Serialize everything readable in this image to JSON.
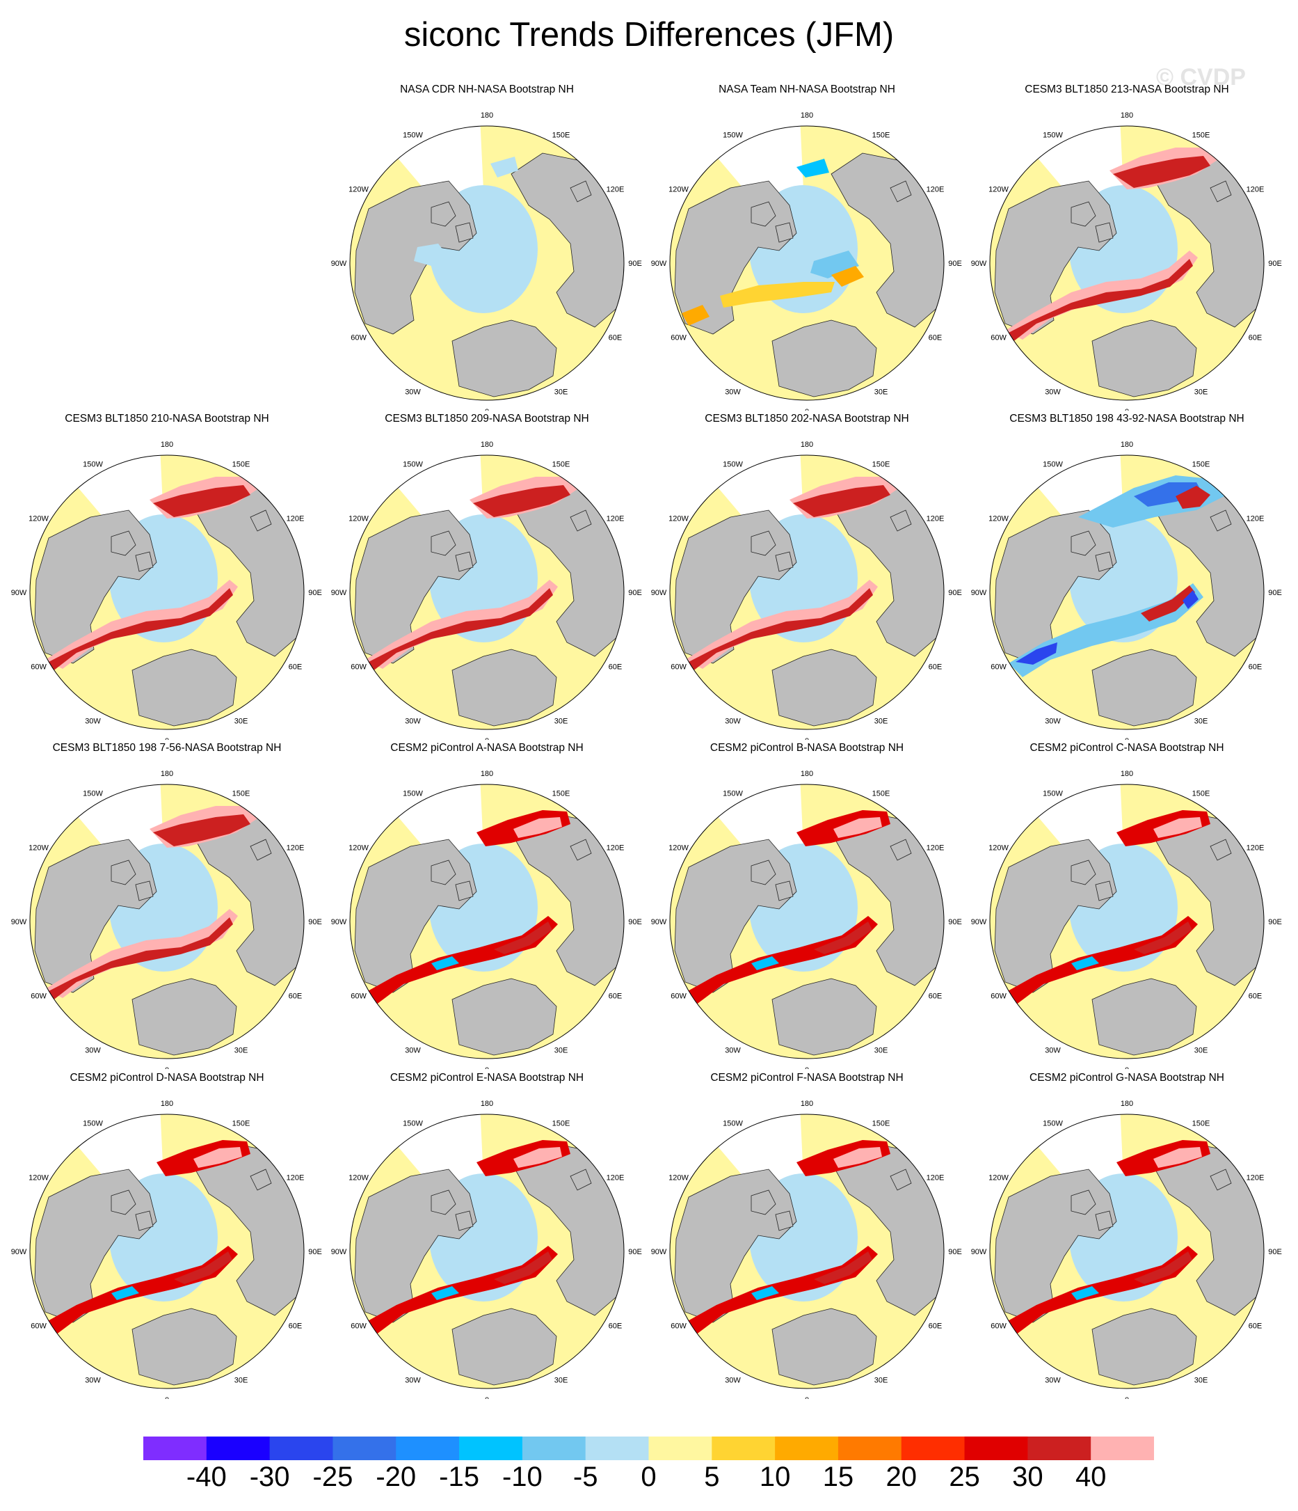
{
  "title": "siconc Trends Differences (JFM)",
  "watermark": "© CVDP",
  "lon_labels": [
    "180",
    "150E",
    "120E",
    "90E",
    "60E",
    "30E",
    "0",
    "30W",
    "60W",
    "90W",
    "120W",
    "150W"
  ],
  "colors": {
    "land": "#bdbdbd",
    "ocean_outside_ice": "#ffffff",
    "zero_band": "#fff7a0",
    "coast": "#222222"
  },
  "colorbar": {
    "colors": [
      "#7f2dff",
      "#1a00ff",
      "#2a45ee",
      "#3471ea",
      "#1e90ff",
      "#00c3ff",
      "#72c8f0",
      "#b4e0f4",
      "#fff7a0",
      "#ffd432",
      "#ffaa00",
      "#ff7a00",
      "#ff2e00",
      "#e00000",
      "#cc2020",
      "#ffb2b2"
    ],
    "labels": [
      "-40",
      "-30",
      "-25",
      "-20",
      "-15",
      "-10",
      "-5",
      "0",
      "5",
      "10",
      "15",
      "20",
      "25",
      "30",
      "40"
    ]
  },
  "panels": [
    {
      "title": "NASA CDR NH-NASA Bootstrap NH",
      "pattern": "cdr"
    },
    {
      "title": "NASA Team NH-NASA Bootstrap NH",
      "pattern": "team"
    },
    {
      "title": "CESM3 BLT1850 213-NASA Bootstrap NH",
      "pattern": "warm"
    },
    {
      "title": "CESM3 BLT1850 210-NASA Bootstrap NH",
      "pattern": "warm"
    },
    {
      "title": "CESM3 BLT1850 209-NASA Bootstrap NH",
      "pattern": "warm"
    },
    {
      "title": "CESM3 BLT1850 202-NASA Bootstrap NH",
      "pattern": "warm"
    },
    {
      "title": "CESM3 BLT1850 198 43-92-NASA Bootstrap NH",
      "pattern": "cool"
    },
    {
      "title": "CESM3 BLT1850 198 7-56-NASA Bootstrap NH",
      "pattern": "warm"
    },
    {
      "title": "CESM2 piControl A-NASA Bootstrap NH",
      "pattern": "mixed"
    },
    {
      "title": "CESM2 piControl B-NASA Bootstrap NH",
      "pattern": "mixed"
    },
    {
      "title": "CESM2 piControl C-NASA Bootstrap NH",
      "pattern": "mixed"
    },
    {
      "title": "CESM2 piControl D-NASA Bootstrap NH",
      "pattern": "mixed"
    },
    {
      "title": "CESM2 piControl E-NASA Bootstrap NH",
      "pattern": "mixed"
    },
    {
      "title": "CESM2 piControl F-NASA Bootstrap NH",
      "pattern": "mixed"
    },
    {
      "title": "CESM2 piControl G-NASA Bootstrap NH",
      "pattern": "mixed"
    }
  ]
}
